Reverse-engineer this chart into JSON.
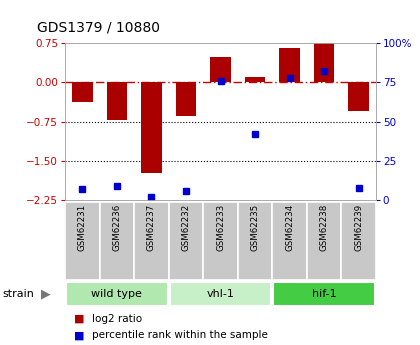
{
  "title": "GDS1379 / 10880",
  "samples": [
    "GSM62231",
    "GSM62236",
    "GSM62237",
    "GSM62232",
    "GSM62233",
    "GSM62235",
    "GSM62234",
    "GSM62238",
    "GSM62239"
  ],
  "log2_ratios": [
    -0.38,
    -0.72,
    -1.73,
    -0.65,
    0.48,
    0.1,
    0.65,
    0.75,
    -0.55
  ],
  "percentile_ranks": [
    7,
    9,
    2,
    6,
    76,
    42,
    78,
    82,
    8
  ],
  "groups": [
    {
      "name": "wild type",
      "indices": [
        0,
        1,
        2
      ],
      "color": "#b0e8b0"
    },
    {
      "name": "vhl-1",
      "indices": [
        3,
        4,
        5
      ],
      "color": "#c8f0c8"
    },
    {
      "name": "hif-1",
      "indices": [
        6,
        7,
        8
      ],
      "color": "#44cc44"
    }
  ],
  "ylim_left": [
    -2.25,
    0.75
  ],
  "ylim_right": [
    0,
    100
  ],
  "yticks_left": [
    0.75,
    0,
    -0.75,
    -1.5,
    -2.25
  ],
  "yticks_right": [
    100,
    75,
    50,
    25,
    0
  ],
  "bar_color": "#aa0000",
  "dot_color": "#0000cc",
  "zero_line_color": "#cc0000",
  "grid_line_color": "#000000",
  "sample_label_bg": "#c8c8c8",
  "bar_width": 0.6,
  "figsize": [
    4.2,
    3.45
  ],
  "dpi": 100
}
